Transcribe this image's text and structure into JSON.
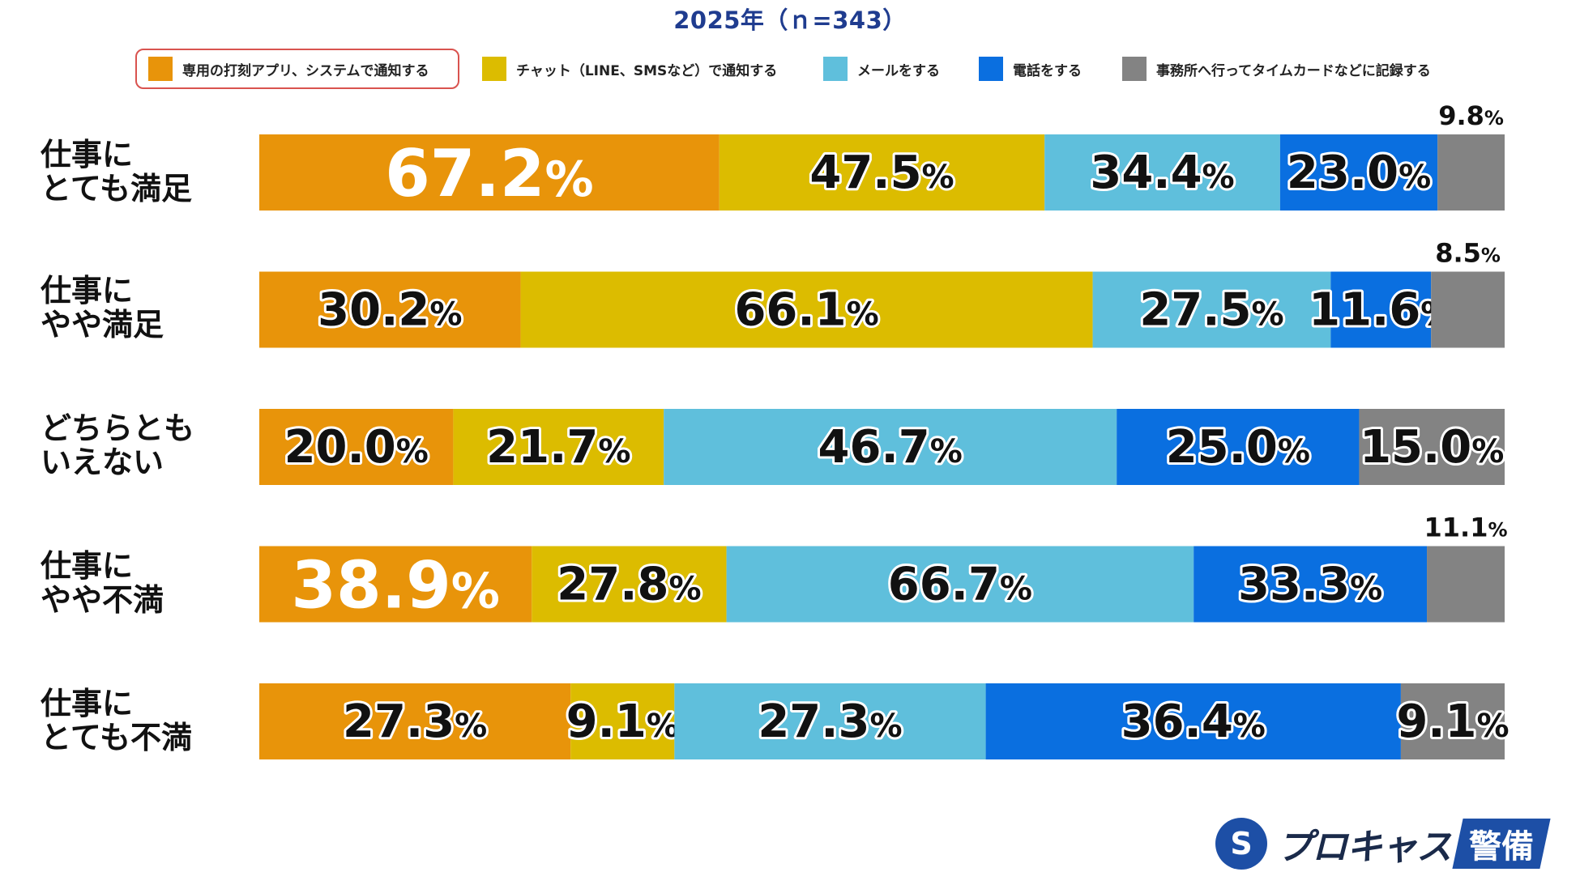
{
  "title": "2025年（ｎ=343）",
  "legend": [
    {
      "label": "専用の打刻アプリ、システムで通知する",
      "color": "#e8940a",
      "highlighted": true
    },
    {
      "label": "チャット（LINE、SMSなど）で通知する",
      "color": "#dcbc00",
      "highlighted": false
    },
    {
      "label": "メールをする",
      "color": "#5fbfdc",
      "highlighted": false
    },
    {
      "label": "電話をする",
      "color": "#0a6fe0",
      "highlighted": false
    },
    {
      "label": "事務所へ行ってタイムカードなどに記録する",
      "color": "#838383",
      "highlighted": false
    }
  ],
  "rows": [
    {
      "label_lines": [
        "仕事に",
        "とても満足"
      ]
    },
    {
      "label_lines": [
        "仕事に",
        "やや満足"
      ]
    },
    {
      "label_lines": [
        "どちらとも",
        "いえない"
      ]
    },
    {
      "label_lines": [
        "仕事に",
        "やや不満"
      ]
    },
    {
      "label_lines": [
        "仕事に",
        "とても不満"
      ]
    }
  ],
  "chart_data": {
    "type": "bar",
    "orientation": "horizontal-stacked",
    "categories": [
      "仕事にとても満足",
      "仕事にやや満足",
      "どちらともいえない",
      "仕事にやや不満",
      "仕事にとても不満"
    ],
    "series": [
      {
        "name": "専用の打刻アプリ、システムで通知する",
        "values": [
          67.2,
          30.2,
          20.0,
          38.9,
          27.3
        ]
      },
      {
        "name": "チャット（LINE、SMSなど）で通知する",
        "values": [
          47.5,
          66.1,
          21.7,
          27.8,
          9.1
        ]
      },
      {
        "name": "メールをする",
        "values": [
          34.4,
          27.5,
          46.7,
          66.7,
          27.3
        ]
      },
      {
        "name": "電話をする",
        "values": [
          23.0,
          11.6,
          25.0,
          33.3,
          36.4
        ]
      },
      {
        "name": "事務所へ行ってタイムカードなどに記録する",
        "values": [
          9.8,
          8.5,
          15.0,
          11.1,
          9.1
        ]
      }
    ],
    "highlight_values": [
      [
        0,
        0
      ],
      [
        3,
        0
      ]
    ],
    "unit": "%"
  },
  "logo": {
    "mark": "S",
    "text": "プロキャス",
    "badge": "警備"
  }
}
